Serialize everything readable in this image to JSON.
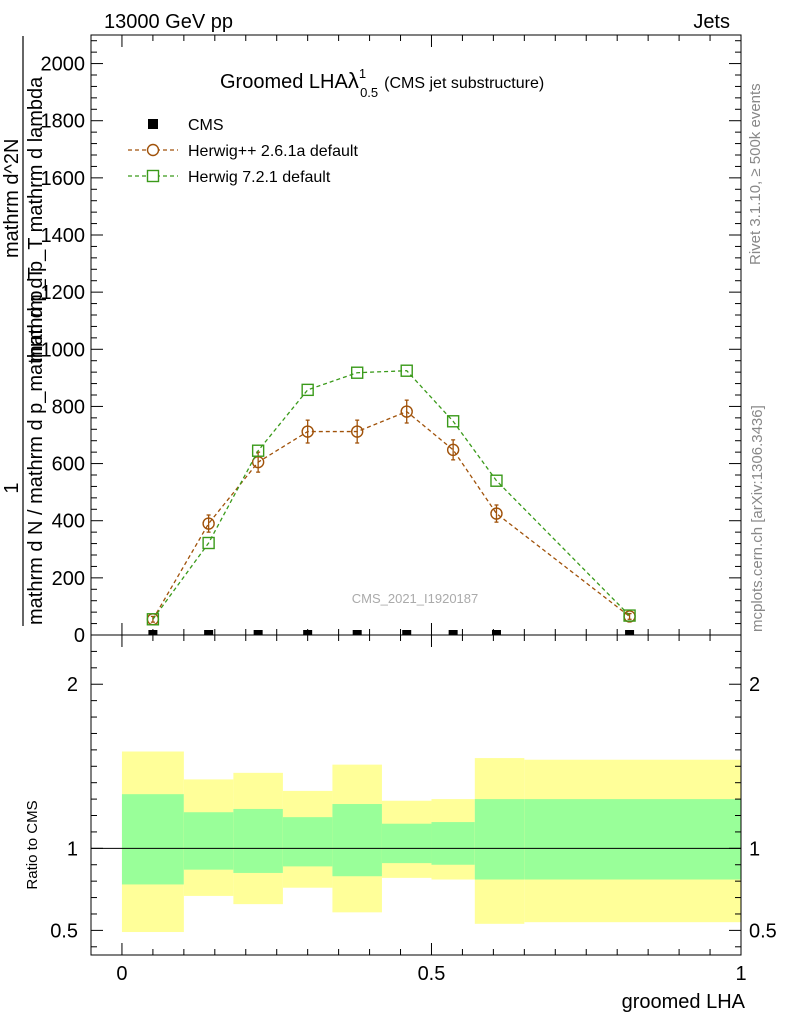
{
  "header": {
    "left": "13000 GeV pp",
    "right": "Jets"
  },
  "side": {
    "rivet": "Rivet 3.1.10, ≥ 500k events",
    "mcplots": "mcplots.cern.ch [arXiv:1306.3436]"
  },
  "watermark": "CMS_2021_I1920187",
  "chart_data": [
    {
      "type": "line",
      "title": "Groomed LHA",
      "title_symbol": "λ",
      "title_sup": "1",
      "title_sub": "0.5",
      "subtitle": "(CMS jet substructure)",
      "ylabel_numerator": "1",
      "ylabel_denominator": "mathrm d N / mathrm d p_mathrm d p_T",
      "ylabel_extra": "mathrm d^2N",
      "ylabel_extra2": "mathrm d p_T mathrm d lambda",
      "xlim": [
        -0.05,
        1.0
      ],
      "ylim": [
        0,
        2100
      ],
      "yticks": [
        0,
        200,
        400,
        600,
        800,
        1000,
        1200,
        1400,
        1600,
        1800,
        2000
      ],
      "x": [
        0.05,
        0.14,
        0.22,
        0.3,
        0.38,
        0.46,
        0.535,
        0.605,
        0.82
      ],
      "series": [
        {
          "name": "CMS",
          "color": "#000000",
          "marker": "square-filled",
          "values": [
            0,
            0,
            0,
            0,
            0,
            0,
            0,
            0,
            0
          ]
        },
        {
          "name": "Herwig++ 2.6.1a default",
          "color": "#a0520a",
          "marker": "circle-open",
          "values": [
            55,
            390,
            605,
            712,
            712,
            782,
            648,
            425,
            65
          ],
          "errors": [
            10,
            30,
            35,
            40,
            40,
            40,
            35,
            30,
            10
          ]
        },
        {
          "name": "Herwig 7.2.1 default",
          "color": "#3a9a1a",
          "marker": "square-open",
          "values": [
            55,
            322,
            645,
            858,
            918,
            925,
            748,
            540,
            68
          ]
        }
      ]
    },
    {
      "type": "area",
      "ylabel": "Ratio to CMS",
      "xlabel": "groomed LHA",
      "xlim": [
        -0.05,
        1.0
      ],
      "ylim": [
        0.35,
        2.3
      ],
      "yticks": [
        0.5,
        1,
        2
      ],
      "ytick_labels": [
        "0.5",
        "1",
        "2"
      ],
      "xticks": [
        0,
        0.5,
        1
      ],
      "xtick_labels": [
        "0",
        "0.5",
        "1"
      ],
      "reference": 1.0,
      "bins": [
        {
          "lo": 0.0,
          "hi": 0.1,
          "band_outer": [
            0.49,
            1.59
          ],
          "band_inner": [
            0.78,
            1.33
          ]
        },
        {
          "lo": 0.1,
          "hi": 0.18,
          "band_outer": [
            0.71,
            1.42
          ],
          "band_inner": [
            0.87,
            1.22
          ]
        },
        {
          "lo": 0.18,
          "hi": 0.26,
          "band_outer": [
            0.66,
            1.46
          ],
          "band_inner": [
            0.85,
            1.24
          ]
        },
        {
          "lo": 0.26,
          "hi": 0.34,
          "band_outer": [
            0.76,
            1.35
          ],
          "band_inner": [
            0.89,
            1.19
          ]
        },
        {
          "lo": 0.34,
          "hi": 0.42,
          "band_outer": [
            0.61,
            1.51
          ],
          "band_inner": [
            0.83,
            1.27
          ]
        },
        {
          "lo": 0.42,
          "hi": 0.5,
          "band_outer": [
            0.82,
            1.29
          ],
          "band_inner": [
            0.91,
            1.15
          ]
        },
        {
          "lo": 0.5,
          "hi": 0.57,
          "band_outer": [
            0.81,
            1.3
          ],
          "band_inner": [
            0.9,
            1.16
          ]
        },
        {
          "lo": 0.57,
          "hi": 0.65,
          "band_outer": [
            0.54,
            1.55
          ],
          "band_inner": [
            0.81,
            1.3
          ]
        },
        {
          "lo": 0.65,
          "hi": 1.0,
          "band_outer": [
            0.55,
            1.54
          ],
          "band_inner": [
            0.81,
            1.3
          ]
        }
      ],
      "colors": {
        "outer": "#ffff99",
        "inner": "#99ff99"
      }
    }
  ]
}
